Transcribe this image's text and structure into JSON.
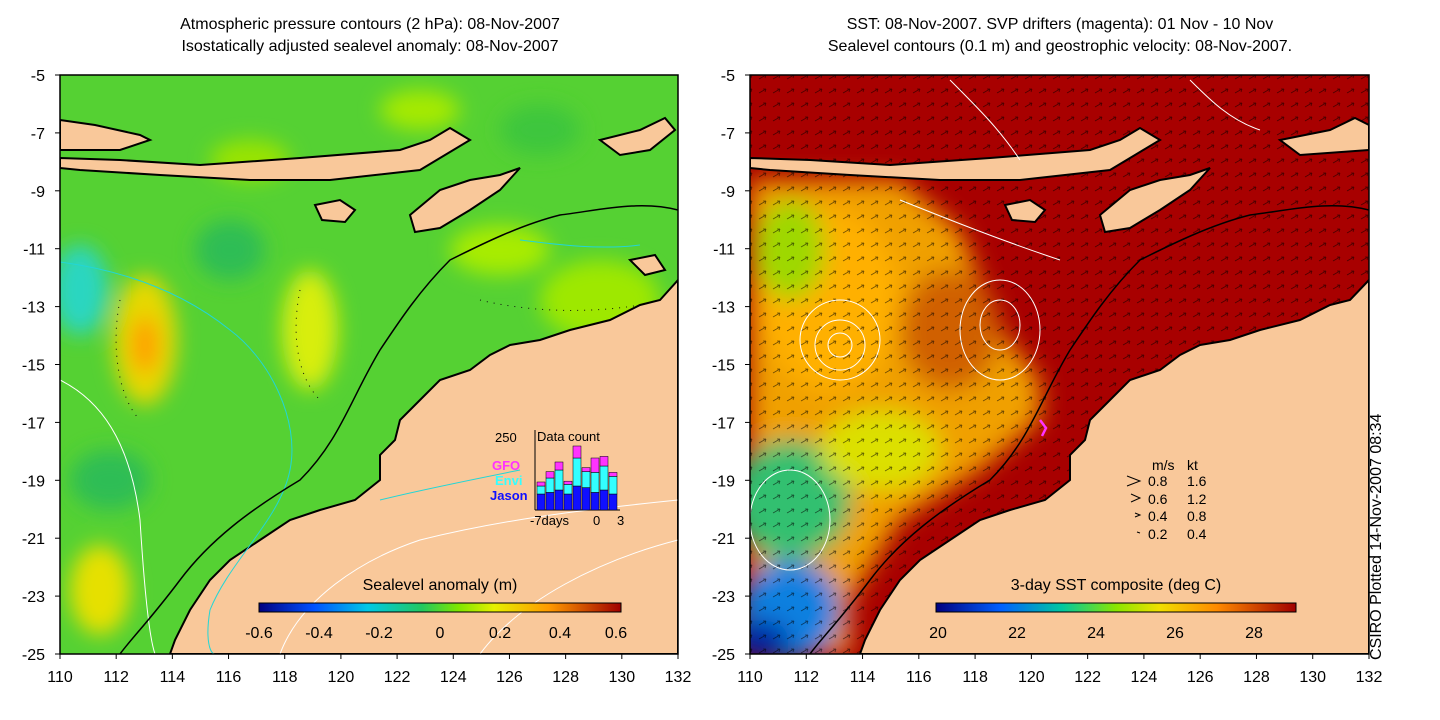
{
  "left_panel": {
    "title_line1": "Atmospheric pressure contours (2 hPa): 08-Nov-2007",
    "title_line2": "Isostatically adjusted sealevel anomaly: 08-Nov-2007",
    "x_ticks": [
      "110",
      "112",
      "114",
      "116",
      "118",
      "120",
      "122",
      "124",
      "126",
      "128",
      "130",
      "132"
    ],
    "y_ticks": [
      "-5",
      "-7",
      "-9",
      "-11",
      "-13",
      "-15",
      "-17",
      "-19",
      "-21",
      "-23",
      "-25"
    ],
    "colorbar_title": "Sealevel anomaly (m)",
    "colorbar_ticks": [
      "-0.6",
      "-0.4",
      "-0.2",
      "0",
      "0.2",
      "0.4",
      "0.6"
    ],
    "inset": {
      "title": "Data count",
      "y_max_label": "250",
      "x_labels": [
        "-7days",
        "0",
        "3"
      ],
      "legend": [
        {
          "label": "GFO",
          "color": "#ff33ff"
        },
        {
          "label": "Envi",
          "color": "#33ffff"
        },
        {
          "label": "Jason",
          "color": "#1010ff"
        }
      ],
      "bars": [
        {
          "jason": 0.2,
          "envi": 0.1,
          "gfo": 0.05
        },
        {
          "jason": 0.22,
          "envi": 0.18,
          "gfo": 0.08
        },
        {
          "jason": 0.25,
          "envi": 0.25,
          "gfo": 0.1
        },
        {
          "jason": 0.2,
          "envi": 0.12,
          "gfo": 0.04
        },
        {
          "jason": 0.3,
          "envi": 0.35,
          "gfo": 0.15
        },
        {
          "jason": 0.28,
          "envi": 0.2,
          "gfo": 0.05
        },
        {
          "jason": 0.22,
          "envi": 0.25,
          "gfo": 0.18
        },
        {
          "jason": 0.25,
          "envi": 0.3,
          "gfo": 0.12
        },
        {
          "jason": 0.2,
          "envi": 0.22,
          "gfo": 0.05
        }
      ]
    }
  },
  "right_panel": {
    "title_line1": "SST: 08-Nov-2007. SVP drifters (magenta): 01 Nov - 10 Nov",
    "title_line2": "Sealevel contours (0.1 m) and geostrophic velocity: 08-Nov-2007.",
    "x_ticks": [
      "110",
      "112",
      "114",
      "116",
      "118",
      "120",
      "122",
      "124",
      "126",
      "128",
      "130",
      "132"
    ],
    "y_ticks": [
      "-5",
      "-7",
      "-9",
      "-11",
      "-13",
      "-15",
      "-17",
      "-19",
      "-21",
      "-23",
      "-25"
    ],
    "colorbar_title": "3-day SST composite (deg C)",
    "colorbar_ticks": [
      "20",
      "22",
      "24",
      "26",
      "28"
    ],
    "speed_legend": {
      "header_ms": "m/s",
      "header_kt": "kt",
      "rows": [
        {
          "ms": "0.8",
          "kt": "1.6"
        },
        {
          "ms": "0.6",
          "kt": "1.2"
        },
        {
          "ms": "0.4",
          "kt": "0.8"
        },
        {
          "ms": "0.2",
          "kt": "0.4"
        }
      ]
    }
  },
  "footer_note": "CSIRO Plotted 14-Nov-2007 08:34",
  "colors": {
    "land": "#f9c89a",
    "sst_warm": "#a80000",
    "sla_base": "#55d133",
    "contour": "#ffffff"
  }
}
